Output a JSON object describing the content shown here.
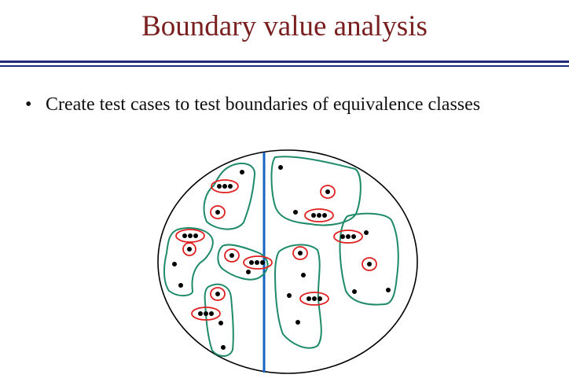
{
  "slide": {
    "title": "Boundary value analysis",
    "bullet_symbol": "•",
    "bullet_text": "Create test cases to test boundaries of equivalence classes"
  },
  "colors": {
    "title": "#7a1f1f",
    "rule": "#1f2a7a",
    "class_outline": "#1e8a6a",
    "boundary_line": "#1565c0",
    "highlight_circle": "#e02020",
    "point": "#000000"
  }
}
